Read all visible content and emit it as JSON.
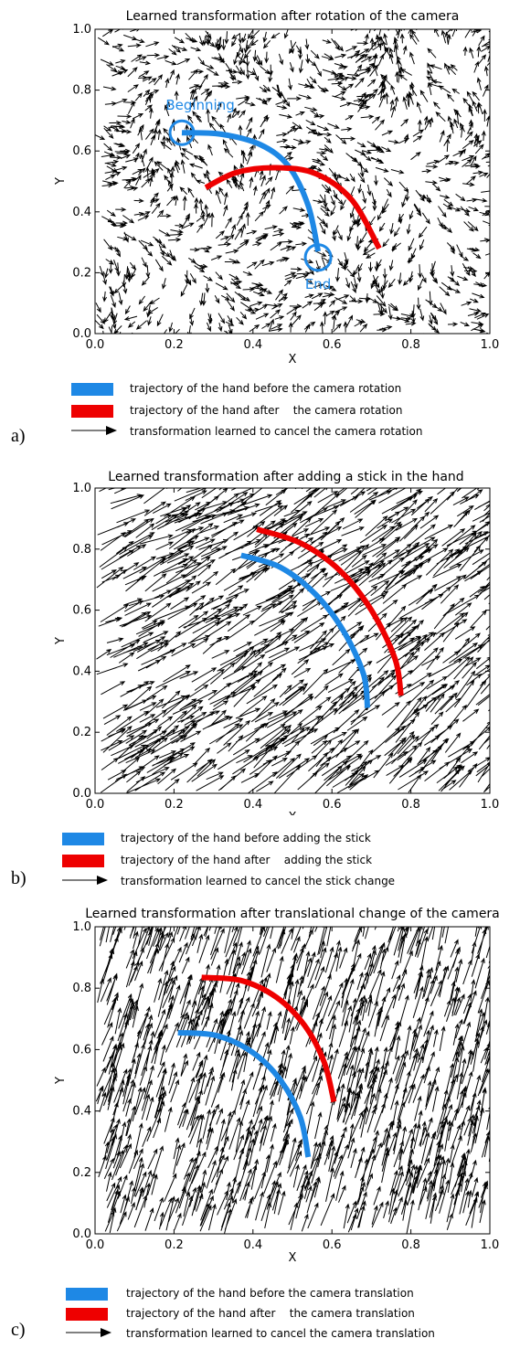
{
  "chart_data": [
    {
      "type": "quiver",
      "panel": "a)",
      "title": "Learned transformation after rotation of the camera",
      "xlabel": "X",
      "ylabel": "Y",
      "xlim": [
        0.0,
        1.0
      ],
      "ylim": [
        0.0,
        1.0
      ],
      "xticks": [
        "0.0",
        "0.2",
        "0.4",
        "0.6",
        "0.8",
        "1.0"
      ],
      "yticks": [
        "0.0",
        "0.2",
        "0.4",
        "0.6",
        "0.8",
        "1.0"
      ],
      "vector_field": "rotation",
      "series": [
        {
          "name": "trajectory of the hand before the camera rotation",
          "color": "#1e88e5",
          "x": [
            0.22,
            0.32,
            0.42,
            0.49,
            0.54,
            0.565
          ],
          "y": [
            0.66,
            0.655,
            0.62,
            0.55,
            0.42,
            0.27
          ]
        },
        {
          "name": "trajectory of the hand after    the camera rotation",
          "color": "#ee0000",
          "x": [
            0.28,
            0.36,
            0.46,
            0.56,
            0.65,
            0.72
          ],
          "y": [
            0.48,
            0.53,
            0.545,
            0.525,
            0.44,
            0.28
          ]
        }
      ],
      "annotations": [
        {
          "text": "Beginning",
          "x": 0.22,
          "y": 0.66
        },
        {
          "text": "End",
          "x": 0.565,
          "y": 0.25
        }
      ],
      "legend": [
        {
          "kind": "swatch",
          "color": "#1e88e5",
          "label": "trajectory of the hand before the camera rotation"
        },
        {
          "kind": "swatch",
          "color": "#ee0000",
          "label": "trajectory of the hand after    the camera rotation"
        },
        {
          "kind": "arrow",
          "label": "transformation learned to cancel the camera rotation"
        }
      ]
    },
    {
      "type": "quiver",
      "panel": "b)",
      "title": "Learned transformation after  adding a stick in the hand",
      "xlabel": "X",
      "ylabel": "Y",
      "xlim": [
        0.0,
        1.0
      ],
      "ylim": [
        0.0,
        1.0
      ],
      "xticks": [
        "0.0",
        "0.2",
        "0.4",
        "0.6",
        "0.8",
        "1.0"
      ],
      "yticks": [
        "0.0",
        "0.2",
        "0.4",
        "0.6",
        "0.8",
        "1.0"
      ],
      "vector_field": "stick",
      "series": [
        {
          "name": "trajectory of the hand before adding the stick",
          "color": "#1e88e5",
          "x": [
            0.37,
            0.47,
            0.56,
            0.63,
            0.68,
            0.69
          ],
          "y": [
            0.78,
            0.74,
            0.65,
            0.53,
            0.39,
            0.28
          ]
        },
        {
          "name": "trajectory of the hand after    adding the stick",
          "color": "#ee0000",
          "x": [
            0.41,
            0.52,
            0.62,
            0.7,
            0.76,
            0.775
          ],
          "y": [
            0.865,
            0.82,
            0.73,
            0.6,
            0.44,
            0.32
          ]
        }
      ],
      "legend": [
        {
          "kind": "swatch",
          "color": "#1e88e5",
          "label": "trajectory of the hand before adding the stick"
        },
        {
          "kind": "swatch",
          "color": "#ee0000",
          "label": "trajectory of the hand after    adding the stick"
        },
        {
          "kind": "arrow",
          "label": "transformation learned to cancel the stick change"
        }
      ]
    },
    {
      "type": "quiver",
      "panel": "c)",
      "title": "Learned transformation after translational change of the camera",
      "xlabel": "X",
      "ylabel": "Y",
      "xlim": [
        0.0,
        1.0
      ],
      "ylim": [
        0.0,
        1.0
      ],
      "xticks": [
        "0.0",
        "0.2",
        "0.4",
        "0.6",
        "0.8",
        "1.0"
      ],
      "yticks": [
        "0.0",
        "0.2",
        "0.4",
        "0.6",
        "0.8",
        "1.0"
      ],
      "vector_field": "translation",
      "series": [
        {
          "name": "trajectory of the hand before the camera translation",
          "color": "#1e88e5",
          "x": [
            0.21,
            0.31,
            0.4,
            0.47,
            0.52,
            0.54
          ],
          "y": [
            0.655,
            0.645,
            0.59,
            0.5,
            0.38,
            0.25
          ]
        },
        {
          "name": "trajectory of the hand after    the camera translation",
          "color": "#ee0000",
          "x": [
            0.27,
            0.37,
            0.46,
            0.53,
            0.58,
            0.605
          ],
          "y": [
            0.835,
            0.825,
            0.77,
            0.68,
            0.56,
            0.43
          ]
        }
      ],
      "legend": [
        {
          "kind": "swatch",
          "color": "#1e88e5",
          "label": "trajectory of the hand before the camera translation"
        },
        {
          "kind": "swatch",
          "color": "#ee0000",
          "label": "trajectory of the hand after    the camera translation"
        },
        {
          "kind": "arrow",
          "label": "transformation learned to cancel the camera translation"
        }
      ]
    }
  ]
}
